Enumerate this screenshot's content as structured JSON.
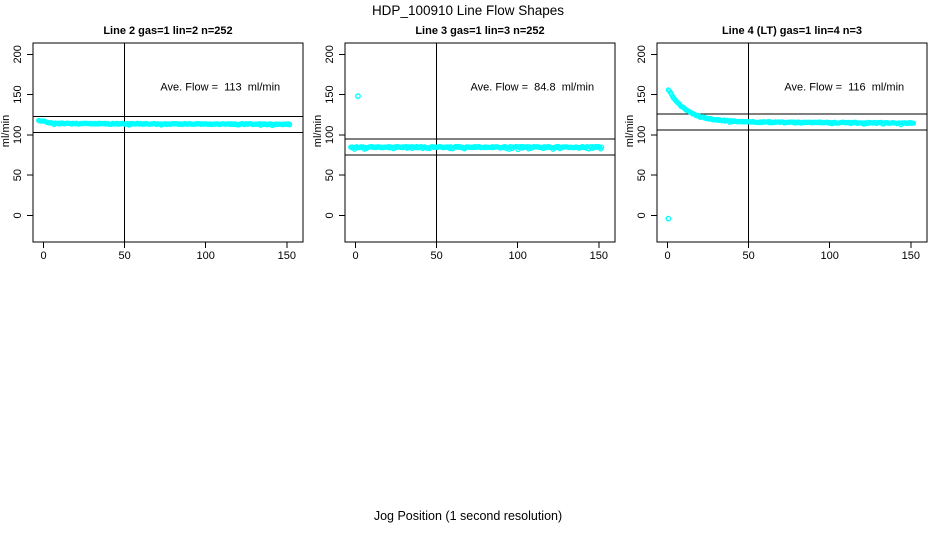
{
  "figure": {
    "main_title": "HDP_100910  Line Flow Shapes",
    "x_axis_label": "Jog Position (1 second resolution)",
    "background_color": "#ffffff",
    "point_color": "#00ffff",
    "axis_color": "#000000"
  },
  "chart_data": [
    {
      "type": "scatter",
      "title": "Line 2 gas=1 lin=2 n=252",
      "ylabel": "ml/min",
      "annotation": "Ave. Flow =  113  ml/min",
      "ave_flow_ml_min": 113,
      "n_points": 252,
      "xticks": [
        0,
        50,
        100,
        150
      ],
      "yticks": [
        0,
        50,
        100,
        150,
        200
      ],
      "xlim": [
        -6.5,
        160
      ],
      "ylim": [
        -33,
        214
      ],
      "vline_x": 50,
      "hlines": [
        123,
        103
      ],
      "annotation_xy": [
        109,
        155
      ],
      "series": {
        "x_start": -3,
        "x_end": 152,
        "x_step": 0.6,
        "base": 114,
        "amplitude": 3.5,
        "tau": 3,
        "slope": -0.006,
        "jitter": 0.65,
        "dip_prob": 0.06,
        "dip_size": 1.2
      },
      "outliers": []
    },
    {
      "type": "scatter",
      "title": "Line 3 gas=1 lin=3 n=252",
      "ylabel": "ml/min",
      "annotation": "Ave. Flow =  84.8  ml/min",
      "ave_flow_ml_min": 84.8,
      "n_points": 252,
      "xticks": [
        0,
        50,
        100,
        150
      ],
      "yticks": [
        0,
        50,
        100,
        150,
        200
      ],
      "xlim": [
        -6.5,
        160
      ],
      "ylim": [
        -33,
        214
      ],
      "vline_x": 50,
      "hlines": [
        94.8,
        74.8
      ],
      "annotation_xy": [
        109,
        155
      ],
      "series": {
        "x_start": -3,
        "x_end": 152,
        "x_step": 0.6,
        "base": 84.8,
        "amplitude": 0,
        "tau": 1,
        "slope": 0,
        "jitter": 0.8,
        "dip_prob": 0.15,
        "dip_size": 1.6
      },
      "outliers": [
        [
          1.5,
          148
        ]
      ]
    },
    {
      "type": "scatter",
      "title": "Line 4 (LT) gas=1 lin=4 n=3",
      "ylabel": "ml/min",
      "annotation": "Ave. Flow =  116  ml/min",
      "ave_flow_ml_min": 116,
      "n_points": 3,
      "xticks": [
        0,
        50,
        100,
        150
      ],
      "yticks": [
        0,
        50,
        100,
        150,
        200
      ],
      "xlim": [
        -6.5,
        160
      ],
      "ylim": [
        -33,
        214
      ],
      "vline_x": 50,
      "hlines": [
        126,
        106
      ],
      "annotation_xy": [
        109,
        155
      ],
      "series": {
        "x_start": 0.5,
        "x_end": 152,
        "x_step": 0.6,
        "base": 116.3,
        "amplitude": 42,
        "tau": 11,
        "slope": -0.012,
        "jitter": 0.75,
        "dip_prob": 0.05,
        "dip_size": 1.2
      },
      "outliers": [
        [
          0.5,
          -4
        ]
      ]
    }
  ]
}
